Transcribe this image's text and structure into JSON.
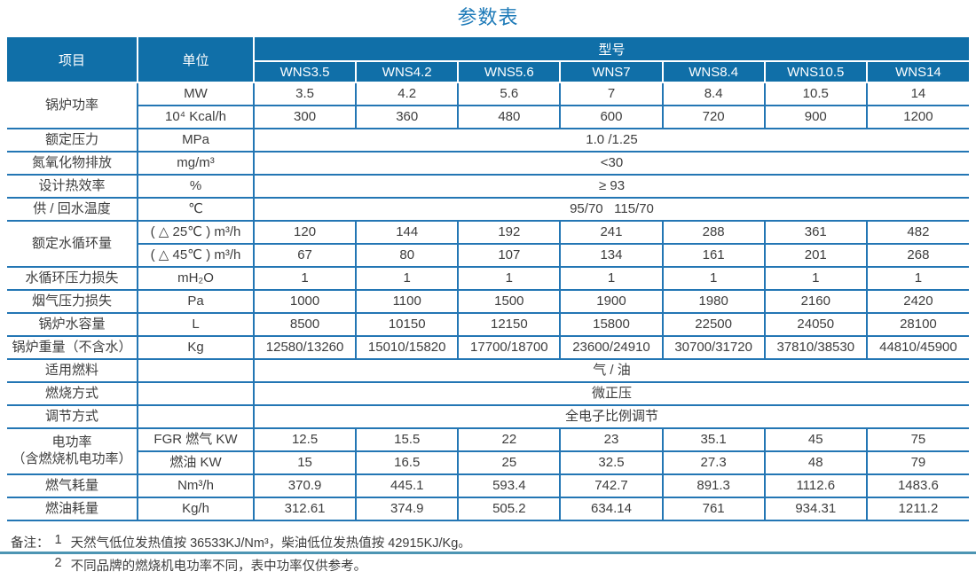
{
  "title": "参数表",
  "colors": {
    "header_bg": "#106fa8",
    "grid_border": "#2376b4",
    "title_text": "#1d7ab8",
    "footer_line": "#4d95b3"
  },
  "table": {
    "header": {
      "item": "项目",
      "unit": "单位",
      "model_group": "型号",
      "models": [
        "WNS3.5",
        "WNS4.2",
        "WNS5.6",
        "WNS7",
        "WNS8.4",
        "WNS10.5",
        "WNS14"
      ]
    },
    "rows": [
      {
        "label": "锅炉功率",
        "label_rowspan": 2,
        "unit": "MW",
        "values": [
          "3.5",
          "4.2",
          "5.6",
          "7",
          "8.4",
          "10.5",
          "14"
        ]
      },
      {
        "unit": "10⁴ Kcal/h",
        "values": [
          "300",
          "360",
          "480",
          "600",
          "720",
          "900",
          "1200"
        ]
      },
      {
        "label": "额定压力",
        "unit": "MPa",
        "span_value": "1.0 /1.25"
      },
      {
        "label": "氮氧化物排放",
        "unit": "mg/m³",
        "span_value": "<30"
      },
      {
        "label": "设计热效率",
        "unit": "%",
        "span_value": "≥ 93"
      },
      {
        "label": "供 / 回水温度",
        "unit": "℃",
        "span_value": "95/70   115/70"
      },
      {
        "label": "额定水循环量",
        "label_rowspan": 2,
        "unit": "( △ 25℃ ) m³/h",
        "values": [
          "120",
          "144",
          "192",
          "241",
          "288",
          "361",
          "482"
        ]
      },
      {
        "unit": "( △ 45℃ ) m³/h",
        "values": [
          "67",
          "80",
          "107",
          "134",
          "161",
          "201",
          "268"
        ]
      },
      {
        "label": "水循环压力损失",
        "unit": "mH₂O",
        "values": [
          "1",
          "1",
          "1",
          "1",
          "1",
          "1",
          "1"
        ]
      },
      {
        "label": "烟气压力损失",
        "unit": "Pa",
        "values": [
          "1000",
          "1100",
          "1500",
          "1900",
          "1980",
          "2160",
          "2420"
        ]
      },
      {
        "label": "锅炉水容量",
        "unit": "L",
        "values": [
          "8500",
          "10150",
          "12150",
          "15800",
          "22500",
          "24050",
          "28100"
        ]
      },
      {
        "label": "锅炉重量（不含水）",
        "unit": "Kg",
        "values": [
          "12580/13260",
          "15010/15820",
          "17700/18700",
          "23600/24910",
          "30700/31720",
          "37810/38530",
          "44810/45900"
        ]
      },
      {
        "label": "适用燃料",
        "unit": "",
        "span_value": "气 / 油"
      },
      {
        "label": "燃烧方式",
        "unit": "",
        "span_value": "微正压"
      },
      {
        "label": "调节方式",
        "unit": "",
        "span_value": "全电子比例调节"
      },
      {
        "label": "电功率\n（含燃烧机电功率）",
        "label_rowspan": 2,
        "unit": "FGR 燃气 KW",
        "values": [
          "12.5",
          "15.5",
          "22",
          "23",
          "35.1",
          "45",
          "75"
        ]
      },
      {
        "unit": "燃油 KW",
        "values": [
          "15",
          "16.5",
          "25",
          "32.5",
          "27.3",
          "48",
          "79"
        ]
      },
      {
        "label": "燃气耗量",
        "unit": "Nm³/h",
        "values": [
          "370.9",
          "445.1",
          "593.4",
          "742.7",
          "891.3",
          "1112.6",
          "1483.6"
        ]
      },
      {
        "label": "燃油耗量",
        "unit": "Kg/h",
        "values": [
          "312.61",
          "374.9",
          "505.2",
          "634.14",
          "761",
          "934.31",
          "1211.2"
        ]
      }
    ]
  },
  "notes": {
    "prefix": "备注：",
    "items": [
      {
        "num": "1",
        "text": "天然气低位发热值按 36533KJ/Nm³，柴油低位发热值按 42915KJ/Kg。"
      },
      {
        "num": "2",
        "text": "不同品牌的燃烧机电功率不同，表中功率仅供参考。"
      }
    ]
  }
}
